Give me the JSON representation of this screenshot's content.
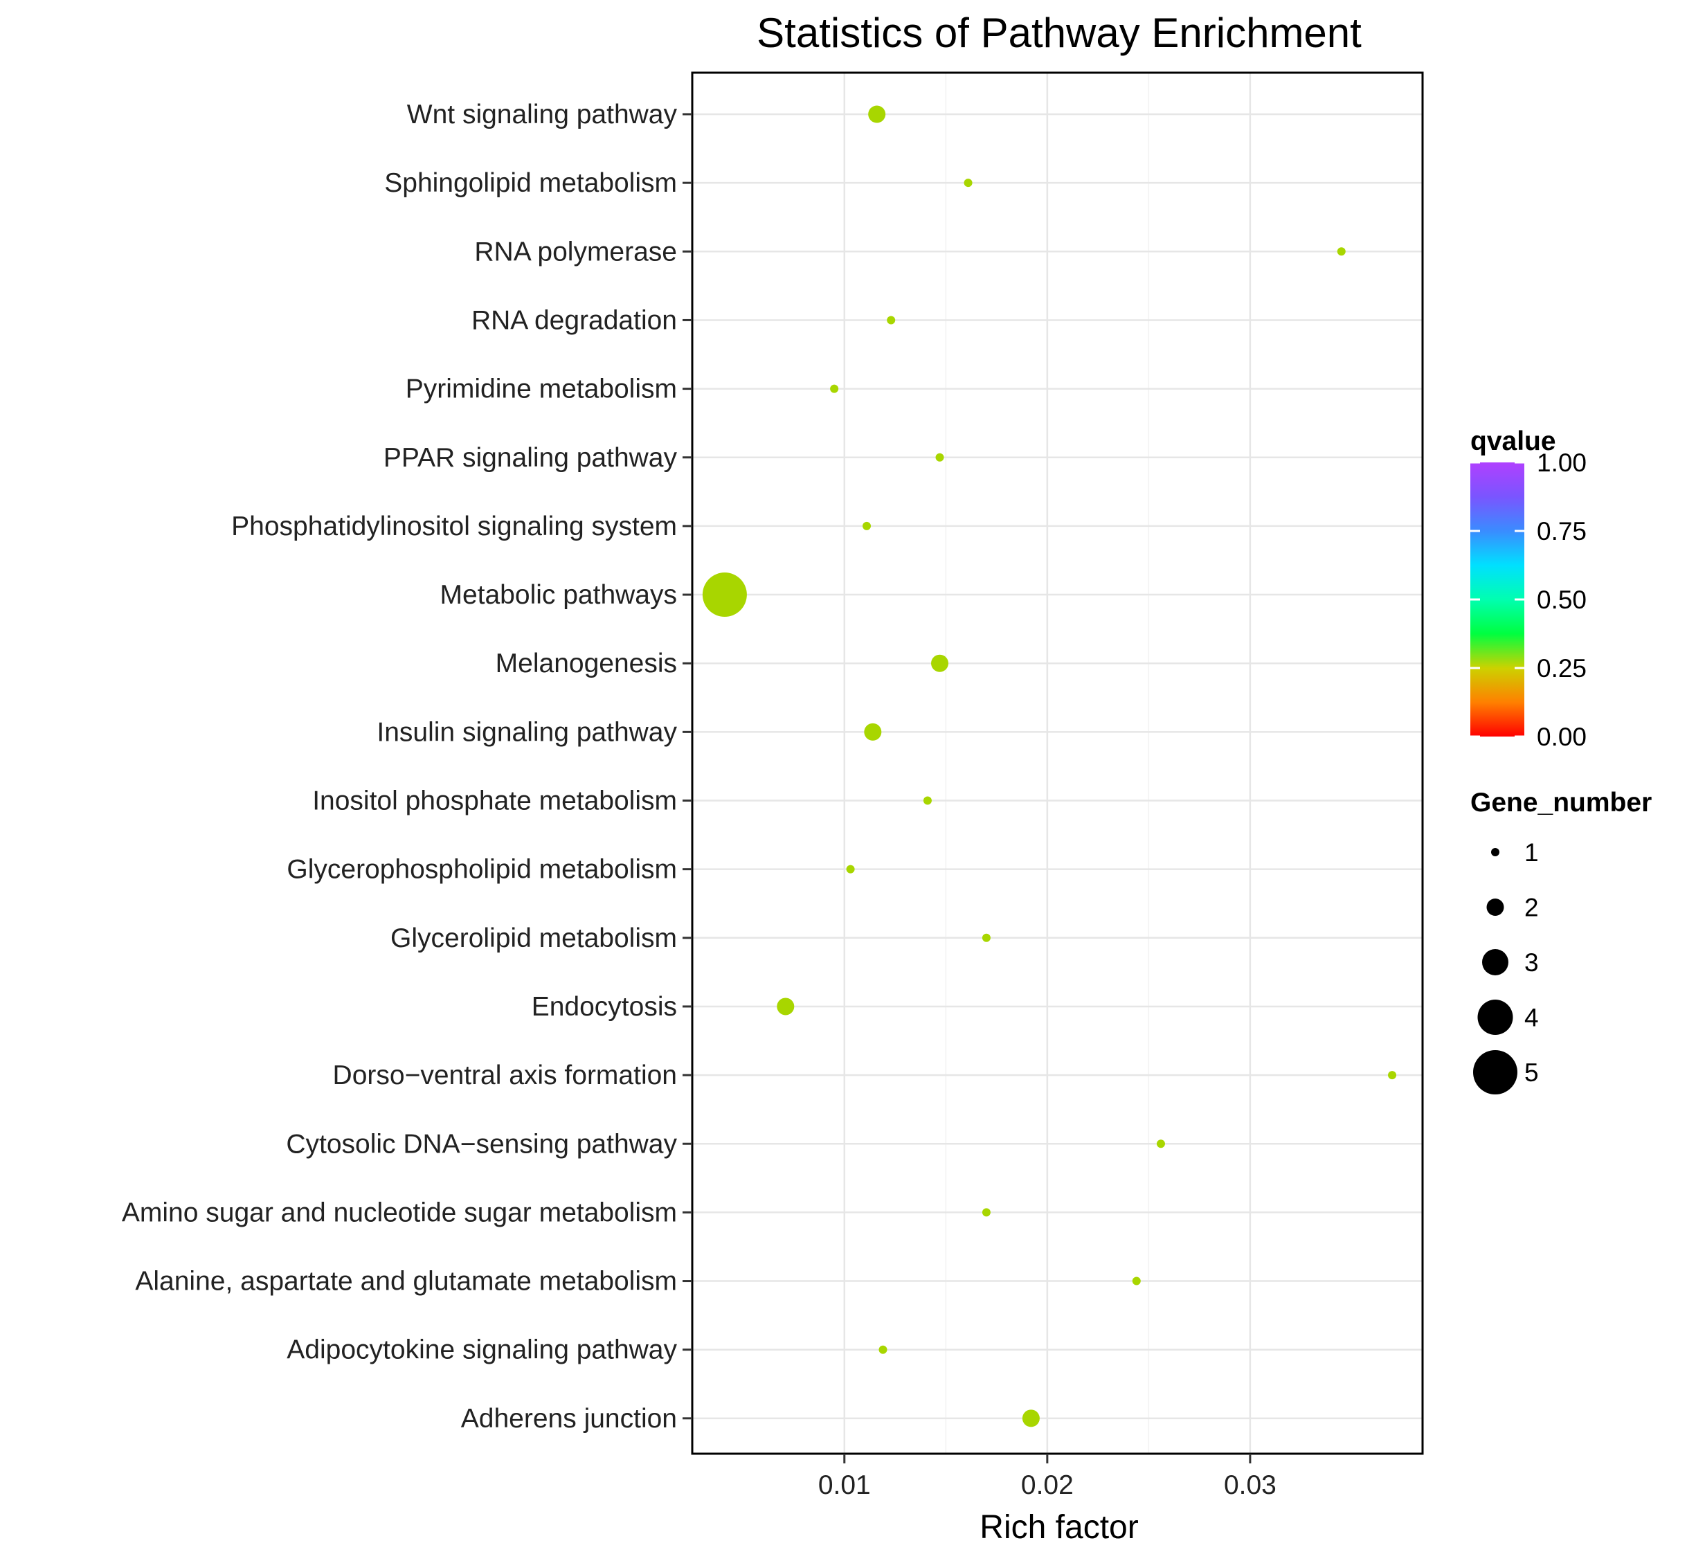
{
  "chart_data": {
    "type": "scatter",
    "title": "Statistics of Pathway Enrichment",
    "xlabel": "Rich factor",
    "ylabel": "",
    "xlim": [
      0.0025,
      0.0385
    ],
    "xticks": [
      0.01,
      0.02,
      0.03
    ],
    "xtick_labels": [
      "0.01",
      "0.02",
      "0.03"
    ],
    "grid": true,
    "point_color": "#a8d600",
    "pathways": [
      {
        "name": "Wnt signaling pathway",
        "rich_factor": 0.0116,
        "gene_number": 2,
        "qvalue": 0.2
      },
      {
        "name": "Sphingolipid metabolism",
        "rich_factor": 0.0161,
        "gene_number": 1,
        "qvalue": 0.2
      },
      {
        "name": "RNA polymerase",
        "rich_factor": 0.0345,
        "gene_number": 1,
        "qvalue": 0.2
      },
      {
        "name": "RNA degradation",
        "rich_factor": 0.0123,
        "gene_number": 1,
        "qvalue": 0.2
      },
      {
        "name": "Pyrimidine metabolism",
        "rich_factor": 0.0095,
        "gene_number": 1,
        "qvalue": 0.2
      },
      {
        "name": "PPAR signaling pathway",
        "rich_factor": 0.0147,
        "gene_number": 1,
        "qvalue": 0.2
      },
      {
        "name": "Phosphatidylinositol signaling system",
        "rich_factor": 0.0111,
        "gene_number": 1,
        "qvalue": 0.2
      },
      {
        "name": "Metabolic pathways",
        "rich_factor": 0.0041,
        "gene_number": 5,
        "qvalue": 0.2
      },
      {
        "name": "Melanogenesis",
        "rich_factor": 0.0147,
        "gene_number": 2,
        "qvalue": 0.2
      },
      {
        "name": "Insulin signaling pathway",
        "rich_factor": 0.0114,
        "gene_number": 2,
        "qvalue": 0.2
      },
      {
        "name": "Inositol phosphate metabolism",
        "rich_factor": 0.0141,
        "gene_number": 1,
        "qvalue": 0.2
      },
      {
        "name": "Glycerophospholipid metabolism",
        "rich_factor": 0.0103,
        "gene_number": 1,
        "qvalue": 0.2
      },
      {
        "name": "Glycerolipid metabolism",
        "rich_factor": 0.017,
        "gene_number": 1,
        "qvalue": 0.2
      },
      {
        "name": "Endocytosis",
        "rich_factor": 0.0071,
        "gene_number": 2,
        "qvalue": 0.2
      },
      {
        "name": "Dorso−ventral axis formation",
        "rich_factor": 0.037,
        "gene_number": 1,
        "qvalue": 0.2
      },
      {
        "name": "Cytosolic DNA−sensing pathway",
        "rich_factor": 0.0256,
        "gene_number": 1,
        "qvalue": 0.2
      },
      {
        "name": "Amino sugar and nucleotide sugar metabolism",
        "rich_factor": 0.017,
        "gene_number": 1,
        "qvalue": 0.2
      },
      {
        "name": "Alanine, aspartate and glutamate metabolism",
        "rich_factor": 0.0244,
        "gene_number": 1,
        "qvalue": 0.2
      },
      {
        "name": "Adipocytokine signaling pathway",
        "rich_factor": 0.0119,
        "gene_number": 1,
        "qvalue": 0.2
      },
      {
        "name": "Adherens junction",
        "rich_factor": 0.0192,
        "gene_number": 2,
        "qvalue": 0.2
      }
    ],
    "legend_qvalue": {
      "title": "qvalue",
      "ticks": [
        "1.00",
        "0.75",
        "0.50",
        "0.25",
        "0.00"
      ],
      "tick_values": [
        1.0,
        0.75,
        0.5,
        0.25,
        0.0
      ],
      "colors": [
        "#ff0000",
        "#ff8000",
        "#ccd200",
        "#00ff40",
        "#00ffb0",
        "#00e0ff",
        "#3a8cff",
        "#7a55ff",
        "#b040ff"
      ]
    },
    "legend_gene_number": {
      "title": "Gene_number",
      "values": [
        1,
        2,
        3,
        4,
        5
      ],
      "labels": [
        "1",
        "2",
        "3",
        "4",
        "5"
      ]
    }
  }
}
